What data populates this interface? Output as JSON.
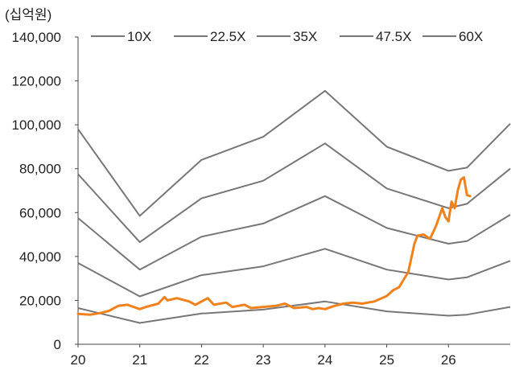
{
  "chart_data": {
    "type": "line",
    "unit_label": "(십억원)",
    "x_tick_labels": [
      "20",
      "21",
      "22",
      "23",
      "24",
      "25",
      "26"
    ],
    "y_tick_labels": [
      "140,000",
      "120,000",
      "100,000",
      "80,000",
      "60,000",
      "40,000",
      "20,000",
      "0"
    ],
    "ylim": [
      0,
      140000
    ],
    "xlim": [
      20,
      27
    ],
    "grid": false,
    "legend_position": "top",
    "band_color": "#777777",
    "price_color": "#f0821e",
    "series": [
      {
        "name": "10X",
        "x": [
          20,
          21,
          22,
          23,
          24,
          25,
          26,
          26.3,
          27
        ],
        "values": [
          16500,
          9700,
          14000,
          15800,
          19500,
          15000,
          13000,
          13500,
          17000
        ]
      },
      {
        "name": "22.5X",
        "x": [
          20,
          21,
          22,
          23,
          24,
          25,
          26,
          26.3,
          27
        ],
        "values": [
          37000,
          21800,
          31500,
          35500,
          43500,
          34000,
          29500,
          30500,
          38000
        ]
      },
      {
        "name": "35X",
        "x": [
          20,
          21,
          22,
          23,
          24,
          25,
          26,
          26.3,
          27
        ],
        "values": [
          57500,
          34000,
          49000,
          55000,
          67500,
          53000,
          45800,
          47000,
          59000
        ]
      },
      {
        "name": "47.5X",
        "x": [
          20,
          21,
          22,
          23,
          24,
          25,
          26,
          26.3,
          27
        ],
        "values": [
          77500,
          46500,
          66500,
          74500,
          91500,
          71000,
          62000,
          64000,
          80000
        ]
      },
      {
        "name": "60X",
        "x": [
          20,
          21,
          22,
          23,
          24,
          25,
          26,
          26.3,
          27
        ],
        "values": [
          98000,
          58500,
          84000,
          94500,
          115500,
          90000,
          79000,
          80500,
          100500
        ]
      }
    ],
    "price_series": {
      "x": [
        20,
        20.2,
        20.35,
        20.5,
        20.65,
        20.8,
        21,
        21.1,
        21.3,
        21.4,
        21.45,
        21.6,
        21.8,
        21.9,
        22.1,
        22.2,
        22.4,
        22.5,
        22.7,
        22.8,
        23,
        23.2,
        23.35,
        23.5,
        23.7,
        23.8,
        23.9,
        24,
        24.15,
        24.3,
        24.45,
        24.6,
        24.8,
        25,
        25.1,
        25.2,
        25.35,
        25.45,
        25.5,
        25.6,
        25.7,
        25.8,
        25.9,
        25.95,
        26,
        26.05,
        26.1,
        26.15,
        26.2,
        26.25,
        26.3,
        26.35
      ],
      "values": [
        13800,
        13500,
        14200,
        15200,
        17500,
        18000,
        16000,
        17000,
        18500,
        21500,
        20000,
        21000,
        19500,
        18000,
        21000,
        18000,
        19000,
        17000,
        18000,
        16500,
        17000,
        17500,
        18500,
        16500,
        17000,
        16000,
        16500,
        16000,
        17500,
        18500,
        19000,
        18500,
        19500,
        22000,
        24500,
        26000,
        33000,
        46000,
        49500,
        50000,
        48000,
        54000,
        62000,
        58000,
        56000,
        65000,
        62000,
        70000,
        75000,
        76000,
        68000,
        67500
      ]
    }
  }
}
